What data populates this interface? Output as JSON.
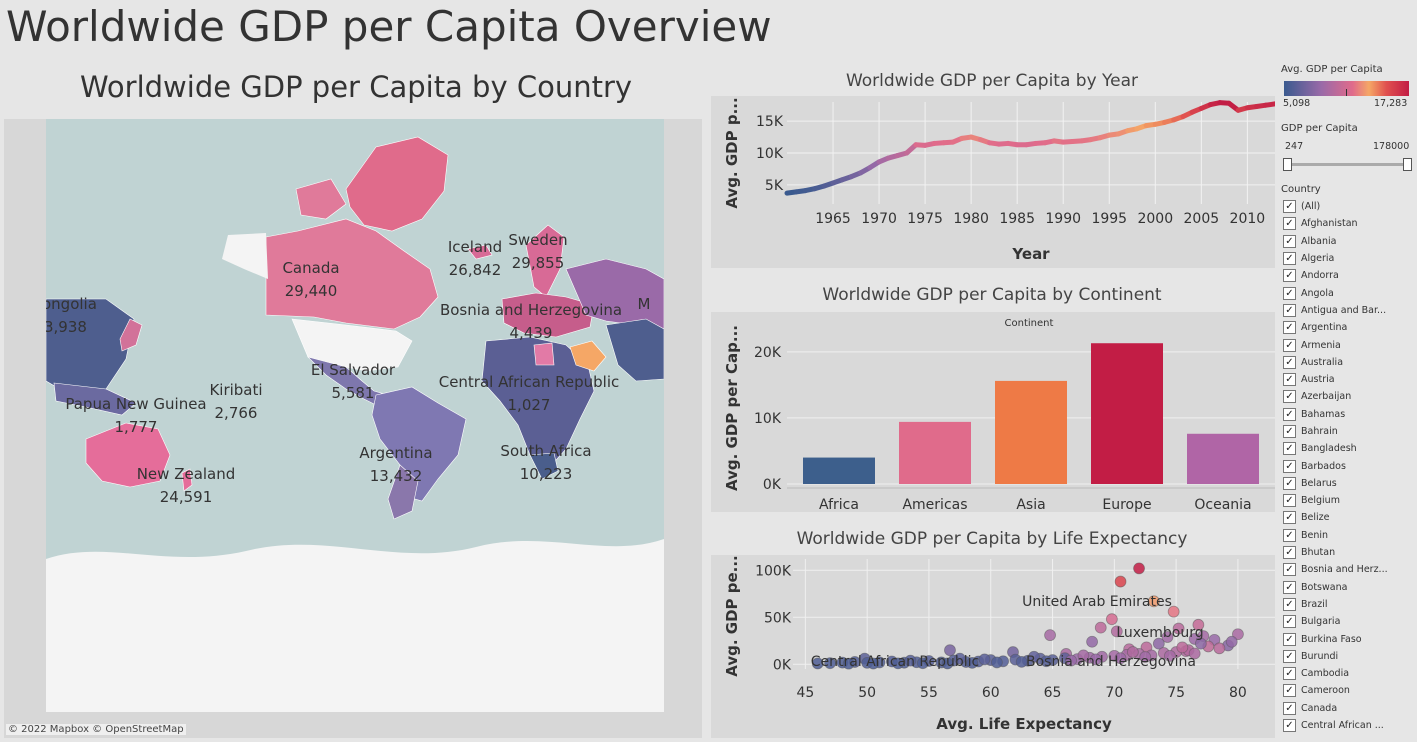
{
  "page": {
    "title": "Worldwide GDP per Capita Overview"
  },
  "map": {
    "title": "Worldwide GDP per Capita by Country",
    "attribution": "© 2022 Mapbox  © OpenStreetMap",
    "labels": [
      {
        "name": "Canada",
        "value": "29,440"
      },
      {
        "name": "Iceland",
        "value": "26,842"
      },
      {
        "name": "Sweden",
        "value": "29,855"
      },
      {
        "name": "ongolia",
        "value": "3,938"
      },
      {
        "name": "Bosnia and Herzegovina",
        "value": "4,439"
      },
      {
        "name": "M",
        "value": ""
      },
      {
        "name": "El Salvador",
        "value": "5,581"
      },
      {
        "name": "Central African Republic",
        "value": "1,027"
      },
      {
        "name": "Kiribati",
        "value": "2,766"
      },
      {
        "name": "Papua New Guinea",
        "value": "1,777"
      },
      {
        "name": "Argentina",
        "value": "13,432"
      },
      {
        "name": "South Africa",
        "value": "10,223"
      },
      {
        "name": "New Zealand",
        "value": "24,591"
      }
    ]
  },
  "chart_data": [
    {
      "type": "line",
      "title": "Worldwide GDP per Capita by Year",
      "xlabel": "Year",
      "ylabel": "Avg. GDP p...",
      "x_ticks": [
        "1965",
        "1970",
        "1975",
        "1980",
        "1985",
        "1990",
        "1995",
        "2000",
        "2005",
        "2010"
      ],
      "y_ticks": [
        "5K",
        "10K",
        "15K"
      ],
      "xlim": [
        1960,
        2013
      ],
      "ylim": [
        2000,
        18000
      ],
      "x": [
        1960,
        1961,
        1962,
        1963,
        1964,
        1965,
        1966,
        1967,
        1968,
        1969,
        1970,
        1971,
        1972,
        1973,
        1974,
        1975,
        1976,
        1977,
        1978,
        1979,
        1980,
        1981,
        1982,
        1983,
        1984,
        1985,
        1986,
        1987,
        1988,
        1989,
        1990,
        1991,
        1992,
        1993,
        1994,
        1995,
        1996,
        1997,
        1998,
        1999,
        2000,
        2001,
        2002,
        2003,
        2004,
        2005,
        2006,
        2007,
        2008,
        2009,
        2010,
        2011,
        2012,
        2013
      ],
      "values": [
        3700,
        3900,
        4100,
        4400,
        4800,
        5300,
        5800,
        6300,
        6900,
        7700,
        8600,
        9200,
        9600,
        10000,
        11300,
        11200,
        11500,
        11600,
        11700,
        12300,
        12500,
        12100,
        11600,
        11400,
        11500,
        11300,
        11300,
        11500,
        11600,
        11900,
        11700,
        11800,
        11900,
        12100,
        12400,
        12800,
        13000,
        13500,
        13800,
        14300,
        14500,
        14800,
        15200,
        15700,
        16400,
        17000,
        17600,
        17900,
        17800,
        16700,
        17100,
        17300,
        17500,
        17700
      ],
      "grid": true
    },
    {
      "type": "bar",
      "title": "Worldwide GDP per Capita by Continent",
      "subtitle": "Continent",
      "ylabel": "Avg. GDP per Cap...",
      "categories": [
        "Africa",
        "Americas",
        "Asia",
        "Europe",
        "Oceania"
      ],
      "values": [
        4000,
        9400,
        15600,
        21300,
        7600
      ],
      "colors": [
        "#3d5f8c",
        "#e06b8b",
        "#ee7a46",
        "#c21d45",
        "#b065a6"
      ],
      "y_ticks": [
        "0K",
        "10K",
        "20K"
      ],
      "ylim": [
        0,
        23000
      ],
      "grid": true
    },
    {
      "type": "scatter",
      "title": "Worldwide GDP per Capita by Life Expectancy",
      "xlabel": "Avg. Life Expectancy",
      "ylabel": "Avg. GDP pe...",
      "x_ticks": [
        "45",
        "50",
        "55",
        "60",
        "65",
        "70",
        "75",
        "80"
      ],
      "y_ticks": [
        "0K",
        "50K",
        "100K"
      ],
      "xlim": [
        44,
        83
      ],
      "ylim": [
        -5000,
        112000
      ],
      "points": [
        [
          72,
          102000
        ],
        [
          70.5,
          88000
        ],
        [
          73.2,
          67000
        ],
        [
          74.8,
          56000
        ],
        [
          69.8,
          48000
        ],
        [
          76.8,
          42000
        ],
        [
          68.9,
          39000
        ],
        [
          75.2,
          38000
        ],
        [
          70.2,
          35000
        ],
        [
          64.8,
          31000
        ],
        [
          80,
          32000
        ],
        [
          77.2,
          30000
        ],
        [
          74.3,
          29000
        ],
        [
          76.5,
          27000
        ],
        [
          78.1,
          26000
        ],
        [
          68.2,
          24000
        ],
        [
          73.6,
          22000
        ],
        [
          56.7,
          15000
        ],
        [
          79.2,
          20000
        ],
        [
          72.6,
          18000
        ],
        [
          71.2,
          16000
        ],
        [
          61.8,
          13000
        ],
        [
          66.1,
          11000
        ],
        [
          75.8,
          14000
        ],
        [
          77.6,
          19000
        ],
        [
          49.8,
          6000
        ],
        [
          47,
          1200
        ],
        [
          48,
          1800
        ],
        [
          49,
          2500
        ],
        [
          50,
          1500
        ],
        [
          51,
          2000
        ],
        [
          52,
          3000
        ],
        [
          53,
          1700
        ],
        [
          54,
          2200
        ],
        [
          55,
          3500
        ],
        [
          56,
          2000
        ],
        [
          57,
          4000
        ],
        [
          58,
          2500
        ],
        [
          59,
          3000
        ],
        [
          60,
          4500
        ],
        [
          61,
          3200
        ],
        [
          62,
          5000
        ],
        [
          63,
          3800
        ],
        [
          64,
          6000
        ],
        [
          65,
          4500
        ],
        [
          66,
          6500
        ],
        [
          67,
          5500
        ],
        [
          68,
          7000
        ],
        [
          69,
          8000
        ],
        [
          70,
          9000
        ],
        [
          71,
          10000
        ],
        [
          72,
          11000
        ],
        [
          73,
          9500
        ],
        [
          74,
          12000
        ],
        [
          75,
          13000
        ],
        [
          76,
          15000
        ],
        [
          46,
          900
        ],
        [
          48.5,
          700
        ],
        [
          50.5,
          800
        ],
        [
          52.5,
          1000
        ],
        [
          54.5,
          1200
        ],
        [
          56.5,
          900
        ],
        [
          58.5,
          1500
        ],
        [
          60.5,
          2000
        ],
        [
          62.5,
          2600
        ],
        [
          64.5,
          3300
        ],
        [
          66.5,
          4000
        ],
        [
          68.5,
          5200
        ],
        [
          70.5,
          6500
        ],
        [
          72.5,
          7800
        ],
        [
          74.5,
          9000
        ],
        [
          76.5,
          11500
        ],
        [
          53.5,
          3900
        ],
        [
          57.5,
          6000
        ],
        [
          59.5,
          5200
        ],
        [
          63.5,
          8000
        ],
        [
          67.5,
          9500
        ],
        [
          71.5,
          13000
        ],
        [
          75.5,
          18000
        ],
        [
          78.5,
          17000
        ],
        [
          79.5,
          24000
        ],
        [
          77,
          22000
        ]
      ],
      "annotations": [
        "United Arab Emirates",
        "Luxembourg",
        "Central African Republic",
        "Bosnia and Herzegovina"
      ],
      "grid": true
    }
  ],
  "legend": {
    "color_title": "Avg. GDP per Capita",
    "color_min": "5,098",
    "color_max": "17,283",
    "range_title": "GDP per Capita",
    "range_min": "247",
    "range_max": "178000",
    "country_title": "Country",
    "countries": [
      "(All)",
      "Afghanistan",
      "Albania",
      "Algeria",
      "Andorra",
      "Angola",
      "Antigua and Bar...",
      "Argentina",
      "Armenia",
      "Australia",
      "Austria",
      "Azerbaijan",
      "Bahamas",
      "Bahrain",
      "Bangladesh",
      "Barbados",
      "Belarus",
      "Belgium",
      "Belize",
      "Benin",
      "Bhutan",
      "Bosnia and Herz...",
      "Botswana",
      "Brazil",
      "Bulgaria",
      "Burkina Faso",
      "Burundi",
      "Cambodia",
      "Cameroon",
      "Canada",
      "Central African ..."
    ]
  },
  "colors": {
    "background": "#e6e6e6",
    "panel": "#d9d9d9",
    "ocean": "#c0d3d3",
    "ramp_low": "#3a5a8f",
    "ramp_mid": "#e06b8b",
    "ramp_high": "#c21d45"
  }
}
